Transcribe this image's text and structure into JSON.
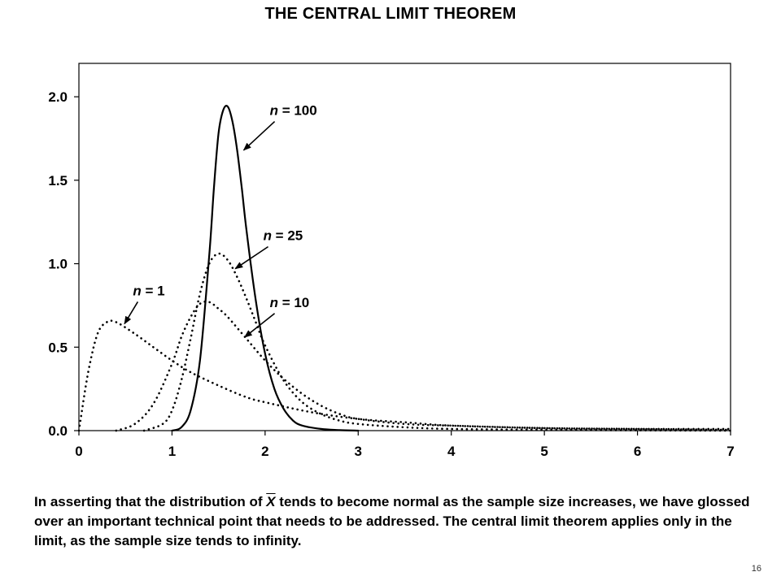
{
  "slide": {
    "title": "THE CENTRAL LIMIT THEOREM",
    "page_number": "16",
    "caption": {
      "before_symbol": "In asserting that the distribution of ",
      "symbol": "X",
      "after_symbol": " tends to become normal as the sample size increases, we have glossed over an important technical point that needs to be addressed.  The central limit theorem applies only in the limit, as the sample size tends to infinity."
    }
  },
  "chart_data": {
    "type": "line",
    "title": "",
    "xlabel": "",
    "ylabel": "",
    "xlim": [
      0,
      7
    ],
    "ylim": [
      0,
      2.2
    ],
    "x_ticks": [
      "0",
      "1",
      "2",
      "3",
      "4",
      "5",
      "6",
      "7"
    ],
    "y_ticks": [
      "0.0",
      "0.5",
      "1.0",
      "1.5",
      "2.0"
    ],
    "grid": false,
    "legend": "none",
    "series": [
      {
        "name": "n = 1",
        "style": "dotted",
        "x": [
          0,
          0.1,
          0.2,
          0.3,
          0.4,
          0.6,
          0.8,
          1.0,
          1.2,
          1.5,
          1.8,
          2.0,
          2.5,
          3.0,
          3.5,
          4.0,
          5.0,
          6.0,
          7.0
        ],
        "values": [
          0,
          0.35,
          0.58,
          0.65,
          0.65,
          0.58,
          0.5,
          0.42,
          0.35,
          0.27,
          0.2,
          0.17,
          0.11,
          0.07,
          0.05,
          0.03,
          0.015,
          0.01,
          0.01
        ]
      },
      {
        "name": "n = 10",
        "style": "dotted",
        "x": [
          0.4,
          0.6,
          0.8,
          1.0,
          1.1,
          1.2,
          1.3,
          1.4,
          1.5,
          1.6,
          1.8,
          2.0,
          2.2,
          2.4,
          2.6,
          2.8,
          3.0,
          3.5,
          4.0,
          5.0,
          6.0,
          7.0
        ],
        "values": [
          0,
          0.04,
          0.16,
          0.4,
          0.56,
          0.68,
          0.76,
          0.77,
          0.73,
          0.68,
          0.55,
          0.42,
          0.31,
          0.22,
          0.15,
          0.1,
          0.07,
          0.04,
          0.03,
          0.015,
          0.01,
          0.005
        ]
      },
      {
        "name": "n = 25",
        "style": "dotted",
        "x": [
          0.7,
          0.9,
          1.0,
          1.1,
          1.2,
          1.3,
          1.4,
          1.5,
          1.6,
          1.7,
          1.8,
          1.9,
          2.0,
          2.2,
          2.4,
          2.6,
          2.8,
          3.0,
          3.5,
          4.0,
          5.0,
          6.0,
          7.0
        ],
        "values": [
          0,
          0.04,
          0.12,
          0.3,
          0.55,
          0.82,
          1.0,
          1.06,
          1.02,
          0.92,
          0.79,
          0.65,
          0.51,
          0.3,
          0.17,
          0.1,
          0.06,
          0.04,
          0.02,
          0.01,
          0.005,
          0.002,
          0
        ]
      },
      {
        "name": "n = 100",
        "style": "solid",
        "x": [
          1.0,
          1.1,
          1.2,
          1.3,
          1.4,
          1.45,
          1.5,
          1.55,
          1.6,
          1.65,
          1.7,
          1.75,
          1.8,
          1.9,
          2.0,
          2.1,
          2.2,
          2.3,
          2.4,
          2.6,
          2.8,
          3.0
        ],
        "values": [
          0,
          0.02,
          0.12,
          0.42,
          1.05,
          1.45,
          1.78,
          1.92,
          1.94,
          1.85,
          1.68,
          1.45,
          1.2,
          0.78,
          0.46,
          0.25,
          0.13,
          0.06,
          0.03,
          0.01,
          0.003,
          0
        ]
      }
    ],
    "annotations": [
      {
        "label_parts": {
          "var": "n",
          "rest": " = 100"
        },
        "text_x": 2.05,
        "text_y": 1.92,
        "arrow_to_x": 1.77,
        "arrow_to_y": 1.68
      },
      {
        "label_parts": {
          "var": "n",
          "rest": " = 25"
        },
        "text_x": 1.98,
        "text_y": 1.17,
        "arrow_to_x": 1.68,
        "arrow_to_y": 0.97
      },
      {
        "label_parts": {
          "var": "n",
          "rest": " = 10"
        },
        "text_x": 2.05,
        "text_y": 0.77,
        "arrow_to_x": 1.78,
        "arrow_to_y": 0.56
      },
      {
        "label_parts": {
          "var": "n",
          "rest": " = 1"
        },
        "text_x": 0.58,
        "text_y": 0.84,
        "arrow_to_x": 0.49,
        "arrow_to_y": 0.64
      }
    ]
  }
}
